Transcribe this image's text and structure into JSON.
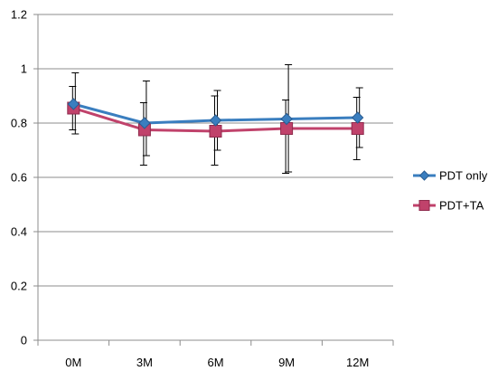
{
  "chart_data": {
    "type": "line",
    "categories": [
      "0M",
      "3M",
      "6M",
      "9M",
      "12M"
    ],
    "ylim": [
      0,
      1.2
    ],
    "yticks": [
      "0",
      "0.2",
      "0.4",
      "0.6",
      "0.8",
      "1",
      "1.2"
    ],
    "grid": true,
    "legend_position": "right",
    "series": [
      {
        "name": "PDT only",
        "color": "#3a7ebf",
        "marker": "diamond",
        "values": [
          0.87,
          0.8,
          0.81,
          0.815,
          0.82
        ],
        "err_low": [
          0.76,
          0.68,
          0.7,
          0.62,
          0.71
        ],
        "err_high": [
          0.985,
          0.955,
          0.92,
          1.015,
          0.93
        ]
      },
      {
        "name": "PDT+TA",
        "color": "#c0426b",
        "marker": "square",
        "values": [
          0.855,
          0.775,
          0.77,
          0.78,
          0.78
        ],
        "err_low": [
          0.775,
          0.645,
          0.645,
          0.615,
          0.665
        ],
        "err_high": [
          0.935,
          0.875,
          0.9,
          0.885,
          0.895
        ]
      }
    ]
  }
}
